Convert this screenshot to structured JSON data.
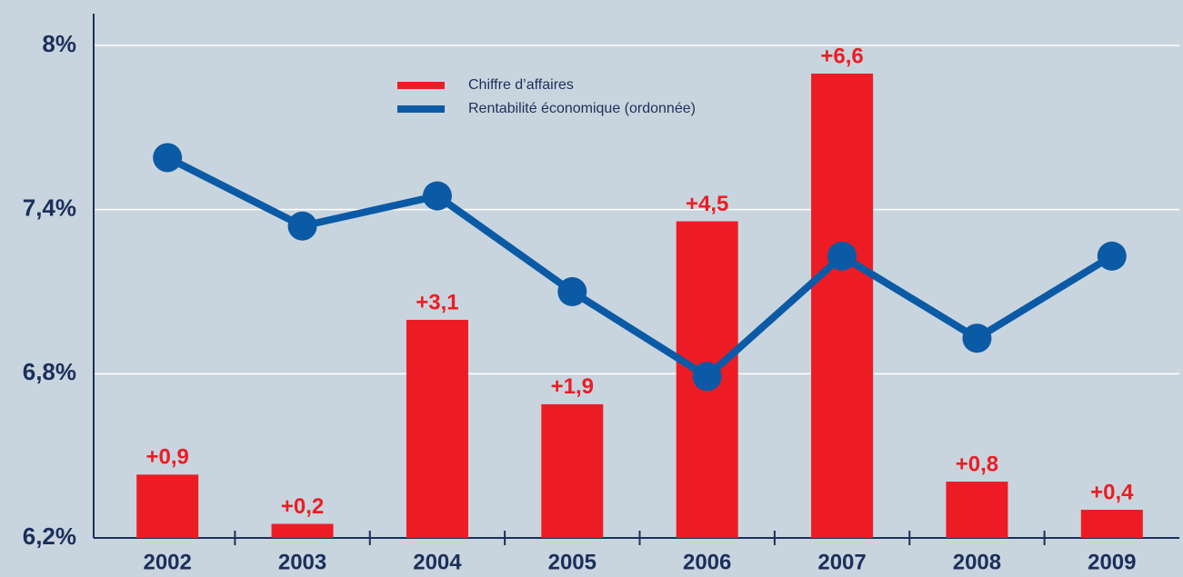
{
  "chart_data": {
    "type": "bar",
    "categories": [
      "2002",
      "2003",
      "2004",
      "2005",
      "2006",
      "2007",
      "2008",
      "2009"
    ],
    "series": [
      {
        "name": "Chiffre d’affaires",
        "color": "#ed1c24",
        "axis": "y2",
        "type": "bar",
        "values": [
          0.9,
          0.2,
          3.1,
          1.9,
          4.5,
          6.6,
          0.8,
          0.4
        ],
        "value_labels": [
          "+0,9",
          "+0,2",
          "+3,1",
          "+1,9",
          "+4,5",
          "+6,6",
          "+0,8",
          "+0,4"
        ]
      },
      {
        "name": "Rentabilité économique (ordonnée)",
        "color": "#0b5aa6",
        "type": "line",
        "values": [
          7.59,
          7.34,
          7.45,
          7.1,
          6.79,
          7.23,
          6.93,
          7.23
        ]
      }
    ],
    "ylim": [
      6.2,
      8
    ],
    "yticks": [
      {
        "value": 6.2,
        "label": "6,2%"
      },
      {
        "value": 6.8,
        "label": "6,8%"
      },
      {
        "value": 7.4,
        "label": "7,4%"
      },
      {
        "value": 8,
        "label": "8%"
      }
    ],
    "y2lim": [
      0,
      7
    ],
    "grid": true
  }
}
